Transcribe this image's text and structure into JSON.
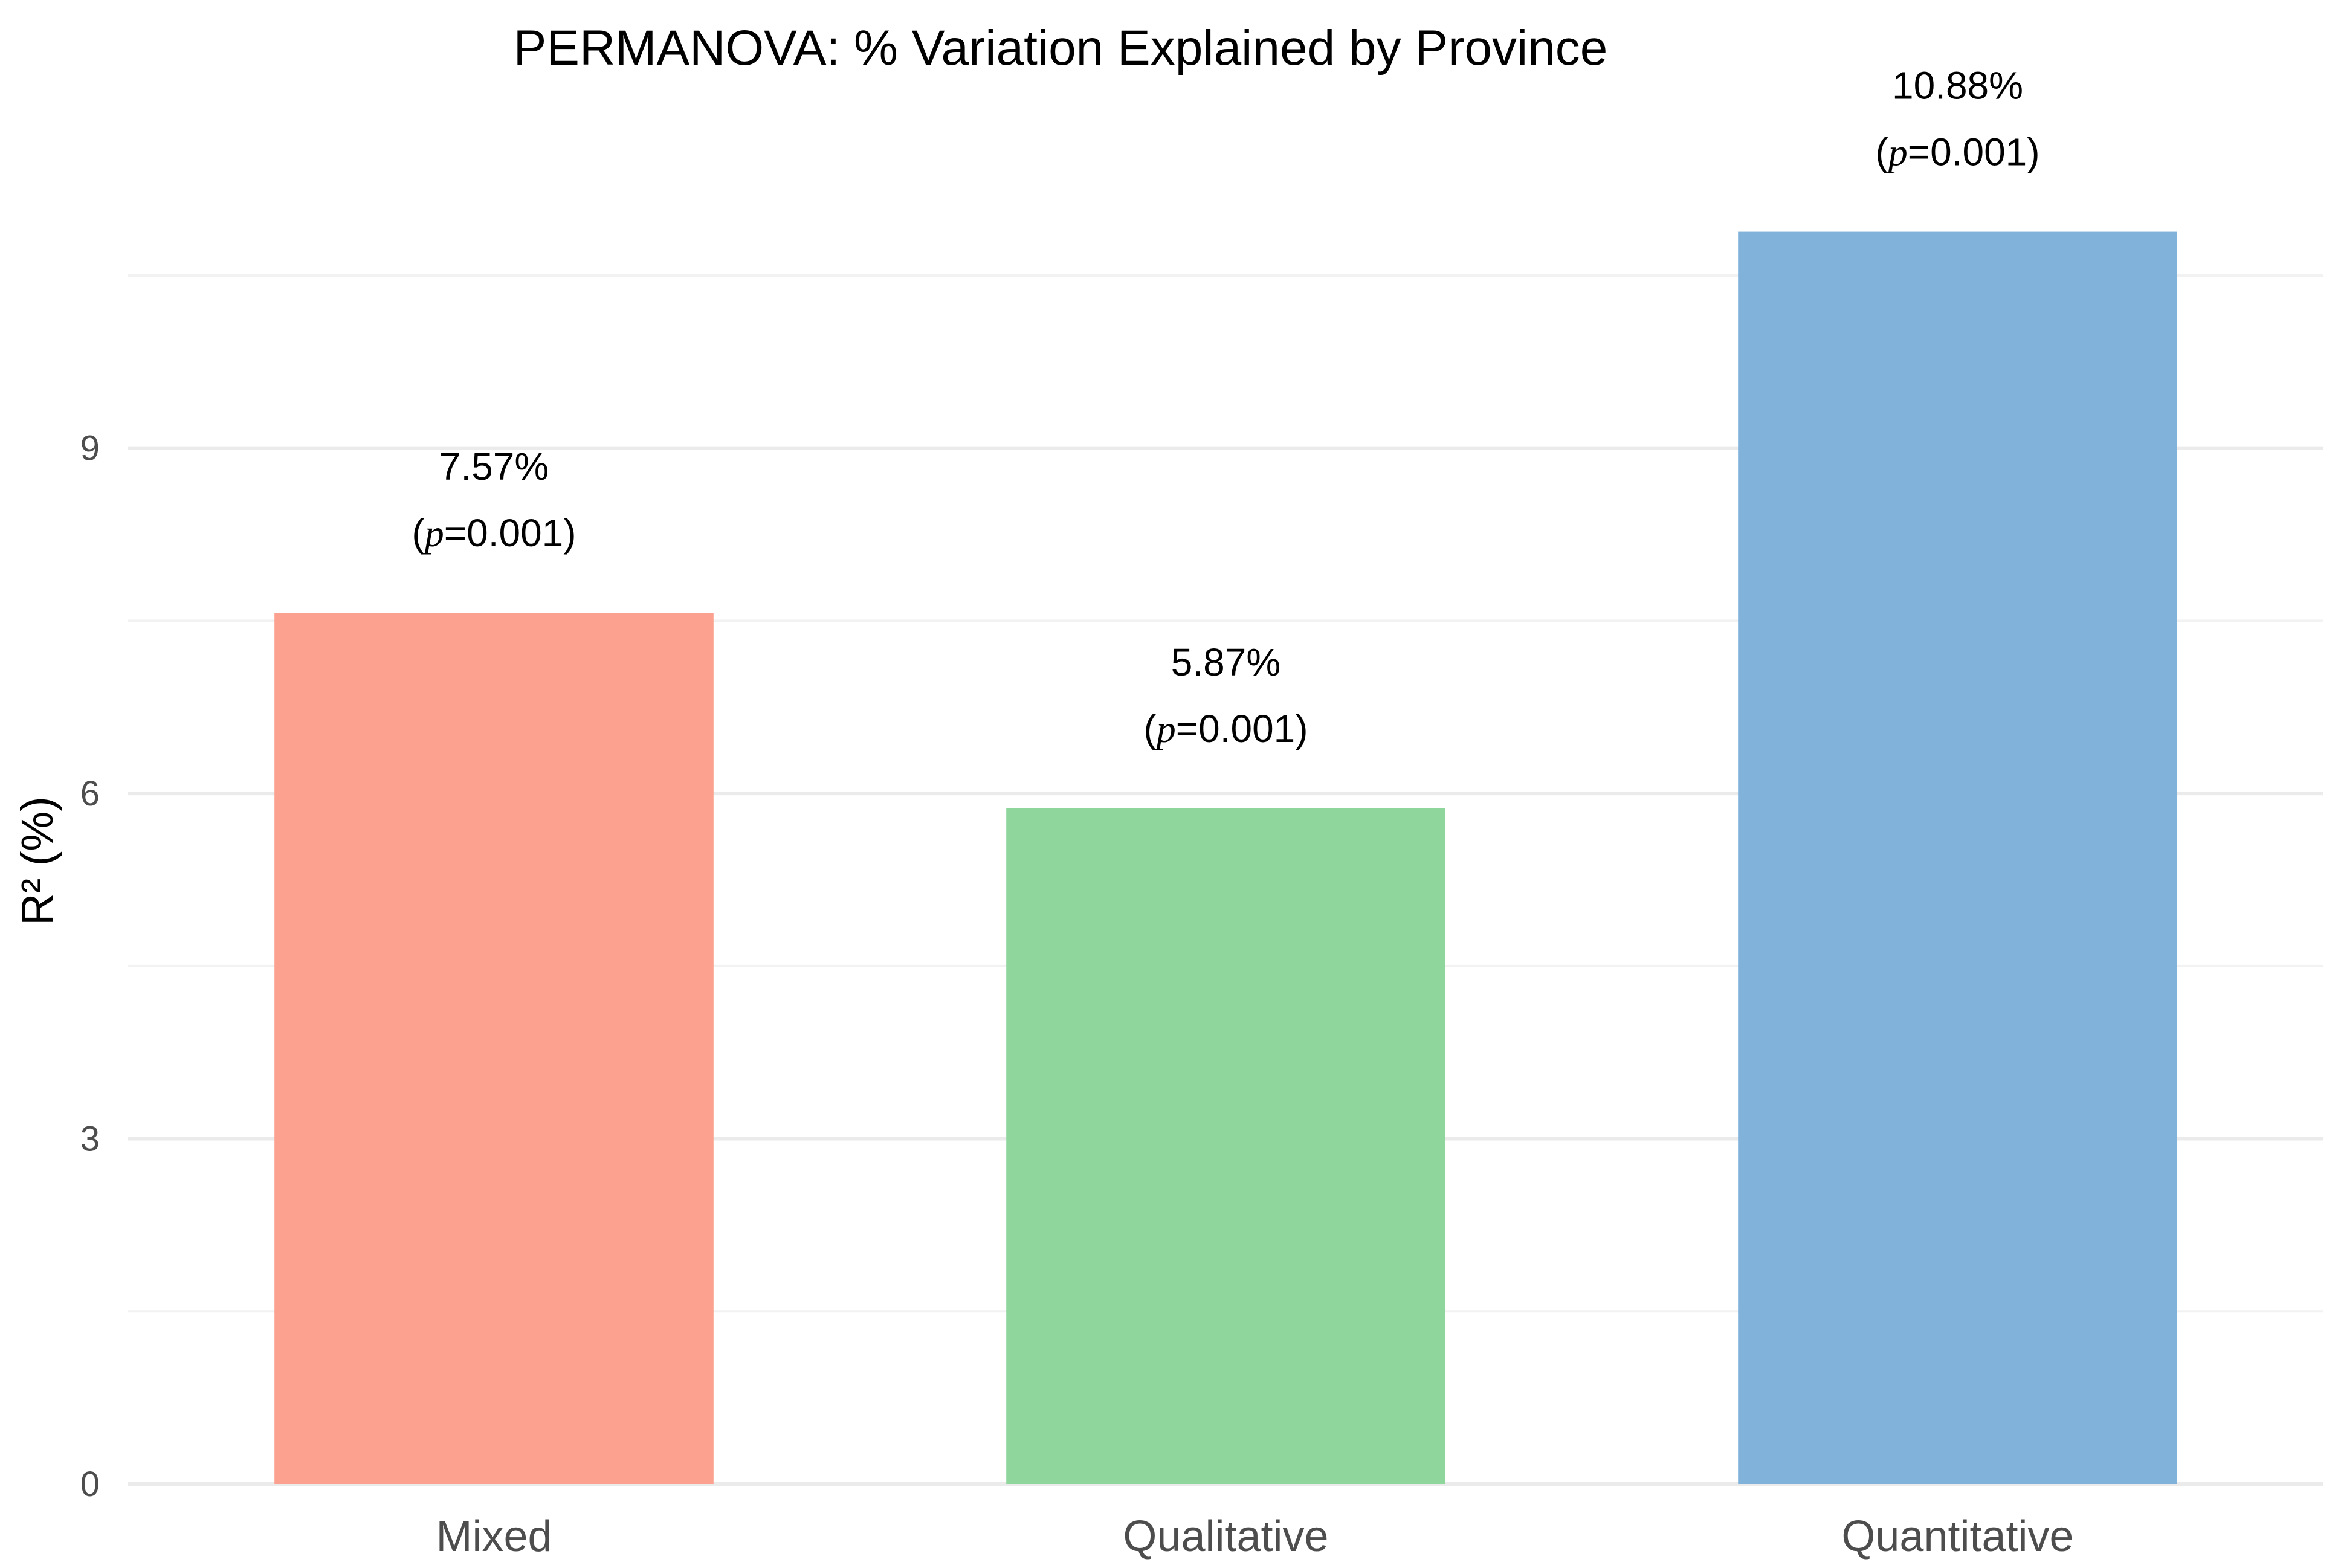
{
  "chart_data": {
    "type": "bar",
    "title": "PERMANOVA: % Variation Explained by Province",
    "xlabel": "",
    "ylabel": "R² (%)",
    "categories": [
      "Mixed",
      "Qualitative",
      "Quantitative"
    ],
    "values": [
      7.57,
      5.87,
      10.88
    ],
    "bar_colors": [
      "#FCA18F",
      "#8FD69C",
      "#80B2DA"
    ],
    "labels": [
      {
        "value_text": "7.57%",
        "p_open": "(",
        "p_symbol": "p",
        "p_rest": "=0.001)"
      },
      {
        "value_text": "5.87%",
        "p_open": "(",
        "p_symbol": "p",
        "p_rest": "=0.001)"
      },
      {
        "value_text": "10.88%",
        "p_open": "(",
        "p_symbol": "p",
        "p_rest": "=0.001)"
      }
    ],
    "yticks": [
      0,
      3,
      6,
      9
    ],
    "ytick_labels": [
      "0",
      "3",
      "6",
      "9"
    ],
    "minor_gridlines": [
      1.5,
      4.5,
      7.5,
      10.5
    ],
    "ylim": [
      0,
      12.08
    ],
    "grid": true,
    "legend": "none"
  }
}
